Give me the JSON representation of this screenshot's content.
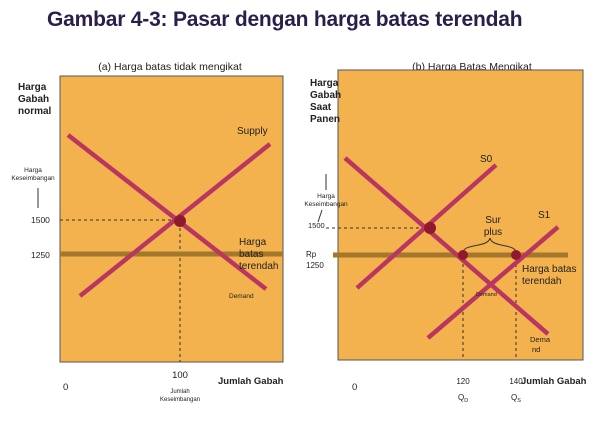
{
  "title": "Gambar 4-3: Pasar dengan harga batas terendah",
  "colors": {
    "panel_fill": "#f4b24e",
    "supply_demand_line": "#b8365f",
    "price_floor_line": "#a4782c",
    "equilibrium_point": "#8f1a2e"
  },
  "panel_a": {
    "caption": "(a) Harga batas tidak mengikat",
    "y_axis_label": [
      "Harga",
      "Gabah",
      "normal"
    ],
    "x_axis_label": "Jumlah Gabah",
    "supply_label": "Supply",
    "demand_label": "Demand",
    "floor_label": [
      "Harga",
      "batas",
      "terendah"
    ],
    "eq_price_label": [
      "Harga",
      "Keseimbangan"
    ],
    "tick_1500": "1500",
    "tick_1250": "1250",
    "origin": "0",
    "tick_100": "100",
    "eq_qty_label": [
      "Jumlah",
      "Keseimbangan"
    ]
  },
  "panel_b": {
    "caption": "(b) Harga Batas Mengikat",
    "y_axis_label": [
      "Harga",
      "Gabah",
      "Saat",
      "Panen"
    ],
    "x_axis_label": "Jumlah Gabah",
    "s0_label": "S0",
    "s1_label": "S1",
    "surplus_label": [
      "Sur",
      "plus"
    ],
    "eq_price_label": [
      "Harga",
      "Keseimbangan"
    ],
    "tick_1500": "1500",
    "floor_price_label": [
      "Rp",
      "1250"
    ],
    "floor_label": [
      "Harga batas",
      "terendah"
    ],
    "demand_mid_label": "Demand",
    "demand_label": [
      "Dema",
      "nd"
    ],
    "origin": "0",
    "tick_120": "120",
    "tick_140": "140",
    "qd_label": "Q",
    "qd_sub": "D",
    "qs_label": "Q",
    "qs_sub": "S"
  }
}
